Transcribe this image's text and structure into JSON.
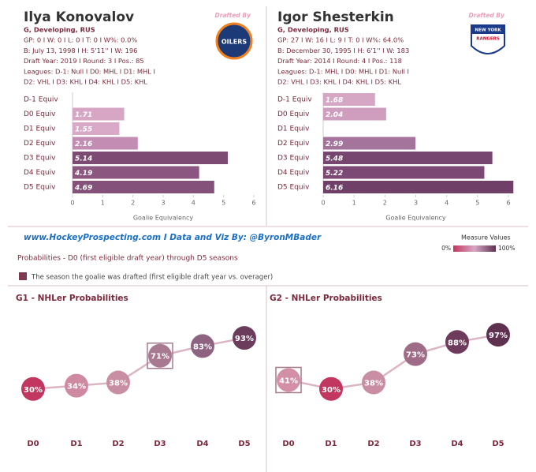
{
  "players": [
    {
      "name": "Ilya Konovalov",
      "drafted_by": "Drafted By",
      "logo_text": [
        "OILERS"
      ],
      "info": [
        "G, Developing, RUS",
        "GP: 0 I W: 0 I L: 0 I T: 0 I W%: 0.0%",
        "B: July 13, 1998 I H: 5'11'' I W: 196",
        "Draft Year: 2019 I Round: 3 I Pos.: 85",
        "Leagues: D-1: Null I D0: MHL I D1: MHL I",
        "D2: VHL I D3: KHL I D4: KHL I D5: KHL"
      ]
    },
    {
      "name": "Igor Shesterkin",
      "drafted_by": "Drafted By",
      "logo_text": [
        "NEW YORK",
        "RANGERS"
      ],
      "info": [
        "G, Developing, RUS",
        "GP: 27 I W: 16 I L: 9 I T: 0 I W%: 64.0%",
        "B: December 30, 1995 I H: 6'1'' I W: 183",
        "Draft Year: 2014 I Round: 4 I Pos.: 118",
        "Leagues: D-1: MHL I D0: MHL I D1: Null I",
        "D2: VHL I D3: KHL I D4: KHL I D5: KHL"
      ]
    }
  ],
  "footer": {
    "site": "www.HockeyProspecting.com  I  Data and Viz By: @ByronMBader",
    "subtitle": "Probabilities - D0 (first eligible draft year) through D5 seasons",
    "note": "The season the goalie was drafted (first eligible draft year vs. overager)",
    "note_color": "#7b3a4e",
    "scale_title": "Measure Values",
    "scale_min": "0%",
    "scale_max": "100%"
  },
  "chart_data": [
    {
      "type": "hbar",
      "categories": [
        "D-1 Equiv",
        "D0 Equiv",
        "D1 Equiv",
        "D2 Equiv",
        "D3 Equiv",
        "D4 Equiv",
        "D5 Equiv"
      ],
      "values": [
        null,
        1.71,
        1.55,
        2.16,
        5.14,
        4.19,
        4.69
      ],
      "colors": [
        null,
        "#d6a6c4",
        "#d9aac8",
        "#c38cb2",
        "#7c4a73",
        "#8b5680",
        "#84517a"
      ],
      "xlim": [
        0,
        6
      ],
      "xticks": [
        0,
        1,
        2,
        3,
        4,
        5,
        6
      ],
      "xlabel": "Goalie Equivalency"
    },
    {
      "type": "hbar",
      "categories": [
        "D-1 Equiv",
        "D0 Equiv",
        "D1 Equiv",
        "D2 Equiv",
        "D3 Equiv",
        "D4 Equiv",
        "D5 Equiv"
      ],
      "values": [
        1.68,
        2.04,
        null,
        2.99,
        5.48,
        5.22,
        6.16
      ],
      "colors": [
        "#d6a7c5",
        "#cf9dbd",
        null,
        "#a5749d",
        "#774670",
        "#7b4973",
        "#6f3f68"
      ],
      "xlim": [
        0,
        6
      ],
      "xticks": [
        0,
        1,
        2,
        3,
        4,
        5,
        6
      ],
      "xlabel": "Goalie Equivalency"
    },
    {
      "type": "line",
      "title": "G1 - NHLer Probabilities",
      "categories": [
        "D0",
        "D1",
        "D2",
        "D3",
        "D4",
        "D5"
      ],
      "values": [
        30,
        34,
        38,
        71,
        83,
        93
      ],
      "value_labels": [
        "30%",
        "34%",
        "38%",
        "71%",
        "83%",
        "93%"
      ],
      "colors": [
        "#c2375f",
        "#cf8aa2",
        "#c98ea3",
        "#a87a92",
        "#8e6281",
        "#6c3c5d"
      ],
      "line_color": "#dcb5c5",
      "highlight": 3,
      "ylim": [
        20,
        100
      ]
    },
    {
      "type": "line",
      "title": "G2 - NHLer Probabilities",
      "categories": [
        "D0",
        "D1",
        "D2",
        "D3",
        "D4",
        "D5"
      ],
      "values": [
        41,
        30,
        38,
        73,
        88,
        97
      ],
      "value_labels": [
        "41%",
        "30%",
        "38%",
        "73%",
        "88%",
        "97%"
      ],
      "colors": [
        "#d28fa6",
        "#c2375f",
        "#c98ea3",
        "#9f6c88",
        "#6f3b5c",
        "#5f3151"
      ],
      "line_color": "#dcb5c5",
      "highlight": 0,
      "ylim": [
        20,
        100
      ]
    }
  ]
}
